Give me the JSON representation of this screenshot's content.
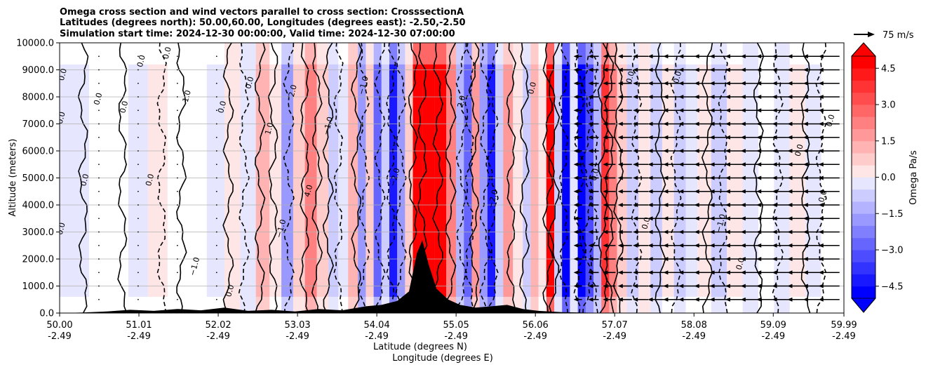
{
  "chart_data": {
    "type": "contourf",
    "title_lines": [
      "Omega cross section and wind vectors parallel to cross section: CrosssectionA",
      "Latitudes (degrees north): 50.00,60.00, Longitudes (degrees east): -2.50,-2.50",
      "Simulation start time: 2024-12-30 00:00:00, Valid time: 2024-12-30 07:00:00"
    ],
    "ylabel": "Altitude (meters)",
    "xlabel_lines": [
      "Latitude (degrees N)",
      "Longitude (degrees E)"
    ],
    "ylim": [
      0,
      10000
    ],
    "xlim": [
      50.0,
      59.99
    ],
    "y_ticks": [
      {
        "value": 0,
        "label": "0.0"
      },
      {
        "value": 1000,
        "label": "1000.0"
      },
      {
        "value": 2000,
        "label": "2000.0"
      },
      {
        "value": 3000,
        "label": "3000.0"
      },
      {
        "value": 4000,
        "label": "4000.0"
      },
      {
        "value": 5000,
        "label": "5000.0"
      },
      {
        "value": 6000,
        "label": "6000.0"
      },
      {
        "value": 7000,
        "label": "7000.0"
      },
      {
        "value": 8000,
        "label": "8000.0"
      },
      {
        "value": 9000,
        "label": "9000.0"
      },
      {
        "value": 10000,
        "label": "10000.0"
      }
    ],
    "x_ticks": [
      {
        "value": 50.0,
        "lat": "50.00",
        "lon": "-2.49"
      },
      {
        "value": 51.01,
        "lat": "51.01",
        "lon": "-2.49"
      },
      {
        "value": 52.02,
        "lat": "52.02",
        "lon": "-2.49"
      },
      {
        "value": 53.03,
        "lat": "53.03",
        "lon": "-2.49"
      },
      {
        "value": 54.04,
        "lat": "54.04",
        "lon": "-2.49"
      },
      {
        "value": 55.05,
        "lat": "55.05",
        "lon": "-2.49"
      },
      {
        "value": 56.06,
        "lat": "56.06",
        "lon": "-2.49"
      },
      {
        "value": 57.07,
        "lat": "57.07",
        "lon": "-2.49"
      },
      {
        "value": 58.08,
        "lat": "58.08",
        "lon": "-2.49"
      },
      {
        "value": 59.09,
        "lat": "59.09",
        "lon": "-2.49"
      },
      {
        "value": 59.99,
        "lat": "59.99",
        "lon": "-2.49"
      }
    ],
    "grid": "horizontal",
    "colorbar": {
      "label": "Omega Pa/s",
      "range": [
        -5.0,
        5.0
      ],
      "levels": [
        -5.0,
        -4.5,
        -4.0,
        -3.5,
        -3.0,
        -2.5,
        -2.0,
        -1.5,
        -1.0,
        -0.5,
        0.0,
        0.5,
        1.0,
        1.5,
        2.0,
        2.5,
        3.0,
        3.5,
        4.0,
        4.5,
        5.0
      ],
      "ticks": [
        {
          "value": 4.5,
          "label": "4.5"
        },
        {
          "value": 3.0,
          "label": "3.0"
        },
        {
          "value": 1.5,
          "label": "1.5"
        },
        {
          "value": 0.0,
          "label": "0.0"
        },
        {
          "value": -1.5,
          "label": "−1.5"
        },
        {
          "value": -3.0,
          "label": "−3.0"
        },
        {
          "value": -4.5,
          "label": "−4.5"
        }
      ],
      "extend": "both",
      "low_color": "#0000ff",
      "mid_color": "#ffffff",
      "high_color": "#ff0000"
    },
    "quiver_key": {
      "label": "75 m/s",
      "speed": 75
    },
    "omega_columns": [
      {
        "x": 50.0,
        "v": -0.3
      },
      {
        "x": 50.25,
        "v": -0.4
      },
      {
        "x": 50.5,
        "v": -0.2
      },
      {
        "x": 50.75,
        "v": 0.1
      },
      {
        "x": 51.0,
        "v": -0.3
      },
      {
        "x": 51.25,
        "v": 0.3
      },
      {
        "x": 51.5,
        "v": -0.2
      },
      {
        "x": 51.75,
        "v": 0.2
      },
      {
        "x": 52.0,
        "v": -0.4
      },
      {
        "x": 52.2,
        "v": 0.6
      },
      {
        "x": 52.4,
        "v": -0.5
      },
      {
        "x": 52.6,
        "v": 1.3
      },
      {
        "x": 52.75,
        "v": 0.3
      },
      {
        "x": 52.9,
        "v": -1.8
      },
      {
        "x": 53.05,
        "v": 0.8
      },
      {
        "x": 53.2,
        "v": 2.5
      },
      {
        "x": 53.35,
        "v": 1.2
      },
      {
        "x": 53.5,
        "v": -1.2
      },
      {
        "x": 53.6,
        "v": -0.4
      },
      {
        "x": 53.75,
        "v": 1.6
      },
      {
        "x": 53.85,
        "v": -2.2
      },
      {
        "x": 53.95,
        "v": 1.0
      },
      {
        "x": 54.05,
        "v": -2.8
      },
      {
        "x": 54.15,
        "v": -1.0
      },
      {
        "x": 54.25,
        "v": -4.5
      },
      {
        "x": 54.35,
        "v": -2.0
      },
      {
        "x": 54.45,
        "v": 0.8
      },
      {
        "x": 54.55,
        "v": 5.0
      },
      {
        "x": 54.7,
        "v": 5.0
      },
      {
        "x": 54.85,
        "v": 5.0
      },
      {
        "x": 55.0,
        "v": 2.5
      },
      {
        "x": 55.1,
        "v": -1.5
      },
      {
        "x": 55.2,
        "v": -3.0
      },
      {
        "x": 55.3,
        "v": 2.0
      },
      {
        "x": 55.4,
        "v": -2.2
      },
      {
        "x": 55.5,
        "v": -4.5
      },
      {
        "x": 55.6,
        "v": -1.2
      },
      {
        "x": 55.7,
        "v": 1.8
      },
      {
        "x": 55.85,
        "v": 0.6
      },
      {
        "x": 55.95,
        "v": -0.8
      },
      {
        "x": 56.05,
        "v": 1.5
      },
      {
        "x": 56.15,
        "v": 0.4
      },
      {
        "x": 56.25,
        "v": 5.0
      },
      {
        "x": 56.35,
        "v": -1.0
      },
      {
        "x": 56.45,
        "v": -5.0
      },
      {
        "x": 56.55,
        "v": -0.6
      },
      {
        "x": 56.65,
        "v": -5.0
      },
      {
        "x": 56.75,
        "v": -3.5
      },
      {
        "x": 56.85,
        "v": -1.5
      },
      {
        "x": 56.95,
        "v": 4.0
      },
      {
        "x": 57.05,
        "v": 2.5
      },
      {
        "x": 57.15,
        "v": 0.9
      },
      {
        "x": 57.3,
        "v": -1.2
      },
      {
        "x": 57.45,
        "v": 0.6
      },
      {
        "x": 57.6,
        "v": -0.8
      },
      {
        "x": 57.75,
        "v": 0.3
      },
      {
        "x": 57.9,
        "v": -1.2
      },
      {
        "x": 58.05,
        "v": -0.4
      },
      {
        "x": 58.2,
        "v": 0.3
      },
      {
        "x": 58.4,
        "v": -1.0
      },
      {
        "x": 58.6,
        "v": 0.4
      },
      {
        "x": 58.8,
        "v": -0.6
      },
      {
        "x": 59.0,
        "v": 0.2
      },
      {
        "x": 59.2,
        "v": -0.7
      },
      {
        "x": 59.4,
        "v": 0.3
      },
      {
        "x": 59.6,
        "v": -0.4
      },
      {
        "x": 59.8,
        "v": 0.2
      }
    ],
    "contour_labels": [
      {
        "x": 50.07,
        "y": 8800,
        "text": "0.0"
      },
      {
        "x": 50.05,
        "y": 7200,
        "text": "0.0"
      },
      {
        "x": 50.05,
        "y": 3100,
        "text": "0.0"
      },
      {
        "x": 50.35,
        "y": 4900,
        "text": "0.0"
      },
      {
        "x": 50.52,
        "y": 7900,
        "text": "0.0"
      },
      {
        "x": 50.85,
        "y": 7600,
        "text": "0.0"
      },
      {
        "x": 51.07,
        "y": 9300,
        "text": "0.0"
      },
      {
        "x": 51.18,
        "y": 4900,
        "text": "0.0"
      },
      {
        "x": 51.4,
        "y": 9600,
        "text": "0.0"
      },
      {
        "x": 51.65,
        "y": 8000,
        "text": "1.0"
      },
      {
        "x": 51.75,
        "y": 1700,
        "text": "−1.0"
      },
      {
        "x": 52.1,
        "y": 7600,
        "text": "0.0"
      },
      {
        "x": 52.2,
        "y": 800,
        "text": "0.0"
      },
      {
        "x": 52.45,
        "y": 8500,
        "text": "0.0"
      },
      {
        "x": 52.7,
        "y": 6800,
        "text": "1.0"
      },
      {
        "x": 52.85,
        "y": 3100,
        "text": "−1.0"
      },
      {
        "x": 53.0,
        "y": 8200,
        "text": "2.0"
      },
      {
        "x": 53.2,
        "y": 4500,
        "text": "4.0"
      },
      {
        "x": 53.45,
        "y": 6900,
        "text": "−1.0"
      },
      {
        "x": 53.9,
        "y": 8400,
        "text": "−1.0"
      },
      {
        "x": 54.3,
        "y": 5000,
        "text": "−2.0"
      },
      {
        "x": 55.15,
        "y": 7800,
        "text": "2.0"
      },
      {
        "x": 55.55,
        "y": 4200,
        "text": "−2.0"
      },
      {
        "x": 56.05,
        "y": 8300,
        "text": "0.0"
      },
      {
        "x": 56.85,
        "y": 5100,
        "text": "0.0"
      },
      {
        "x": 57.3,
        "y": 8700,
        "text": "0.0"
      },
      {
        "x": 57.5,
        "y": 3300,
        "text": "0.0"
      },
      {
        "x": 57.9,
        "y": 8700,
        "text": "0.0"
      },
      {
        "x": 58.45,
        "y": 3300,
        "text": "−1.0"
      },
      {
        "x": 58.7,
        "y": 1800,
        "text": "0.0"
      },
      {
        "x": 59.45,
        "y": 6000,
        "text": "0.0"
      },
      {
        "x": 59.75,
        "y": 4300,
        "text": "0.0"
      },
      {
        "x": 59.85,
        "y": 7100,
        "text": "0.0"
      }
    ],
    "solid_contours": [
      50.3,
      50.8,
      51.55,
      52.15,
      52.55,
      52.72,
      53.12,
      53.28,
      53.42,
      53.78,
      54.5,
      54.62,
      54.82,
      54.98,
      55.28,
      55.75,
      55.92,
      56.22,
      56.3,
      56.92,
      57.0,
      57.12,
      57.65,
      58.25,
      58.9,
      59.5
    ],
    "dashed_contours": [
      51.3,
      52.35,
      52.92,
      53.55,
      53.88,
      54.08,
      54.22,
      54.35,
      55.12,
      55.22,
      55.42,
      55.52,
      56.42,
      56.62,
      56.72,
      56.8,
      57.35,
      57.85,
      58.45,
      59.15,
      59.7
    ],
    "wind_vectors": [
      {
        "x": 50.5,
        "u": 0
      },
      {
        "x": 51.0,
        "u": 0
      },
      {
        "x": 51.5,
        "u": 0
      },
      {
        "x": 52.0,
        "u": 0
      },
      {
        "x": 56.6,
        "u": -12
      },
      {
        "x": 56.8,
        "u": -15
      },
      {
        "x": 57.0,
        "u": -18
      },
      {
        "x": 57.2,
        "u": -20
      },
      {
        "x": 57.4,
        "u": -22
      },
      {
        "x": 57.6,
        "u": -24
      },
      {
        "x": 57.8,
        "u": -25
      },
      {
        "x": 58.0,
        "u": -26
      },
      {
        "x": 58.2,
        "u": -26
      },
      {
        "x": 58.4,
        "u": -27
      },
      {
        "x": 58.6,
        "u": -27
      },
      {
        "x": 58.8,
        "u": -28
      },
      {
        "x": 59.0,
        "u": -28
      },
      {
        "x": 59.2,
        "u": -28
      },
      {
        "x": 59.4,
        "u": -29
      },
      {
        "x": 59.6,
        "u": -29
      },
      {
        "x": 59.8,
        "u": -30
      }
    ],
    "terrain": [
      {
        "x": 50.0,
        "h": 0
      },
      {
        "x": 50.3,
        "h": 20
      },
      {
        "x": 50.6,
        "h": 60
      },
      {
        "x": 50.9,
        "h": 120
      },
      {
        "x": 51.2,
        "h": 80
      },
      {
        "x": 51.5,
        "h": 150
      },
      {
        "x": 51.8,
        "h": 100
      },
      {
        "x": 52.1,
        "h": 200
      },
      {
        "x": 52.4,
        "h": 80
      },
      {
        "x": 52.7,
        "h": 120
      },
      {
        "x": 53.0,
        "h": 60
      },
      {
        "x": 53.3,
        "h": 150
      },
      {
        "x": 53.6,
        "h": 100
      },
      {
        "x": 53.9,
        "h": 250
      },
      {
        "x": 54.1,
        "h": 300
      },
      {
        "x": 54.3,
        "h": 450
      },
      {
        "x": 54.45,
        "h": 800
      },
      {
        "x": 54.55,
        "h": 2200
      },
      {
        "x": 54.62,
        "h": 2700
      },
      {
        "x": 54.7,
        "h": 1800
      },
      {
        "x": 54.8,
        "h": 900
      },
      {
        "x": 54.95,
        "h": 500
      },
      {
        "x": 55.1,
        "h": 300
      },
      {
        "x": 55.3,
        "h": 200
      },
      {
        "x": 55.5,
        "h": 250
      },
      {
        "x": 55.7,
        "h": 300
      },
      {
        "x": 55.9,
        "h": 150
      },
      {
        "x": 56.1,
        "h": 80
      },
      {
        "x": 56.4,
        "h": 30
      },
      {
        "x": 56.8,
        "h": 10
      },
      {
        "x": 57.1,
        "h": 0
      },
      {
        "x": 59.99,
        "h": 0
      }
    ]
  }
}
